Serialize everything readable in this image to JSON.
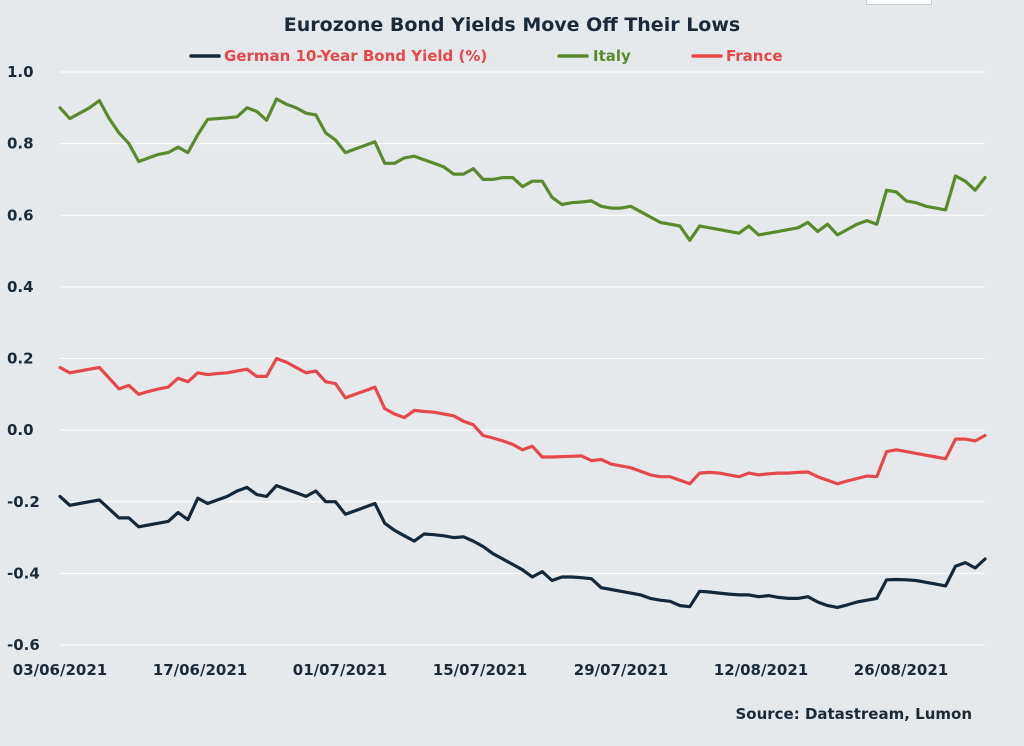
{
  "chart_data": {
    "type": "line",
    "title": "Eurozone Bond Yields Move Off Their Lows",
    "source": "Source: Datastream, Lumon",
    "xlabel": "",
    "ylabel": "",
    "ylim": [
      -0.6,
      1.0
    ],
    "yticks": [
      "1.0",
      "0.8",
      "0.6",
      "0.4",
      "0.2",
      "0.0",
      "-0.2",
      "-0.4",
      "-0.6"
    ],
    "ytick_values": [
      1.0,
      0.8,
      0.6,
      0.4,
      0.2,
      0.0,
      -0.2,
      -0.4,
      -0.6
    ],
    "xticks": [
      "03/06/2021",
      "17/06/2021",
      "01/07/2021",
      "15/07/2021",
      "29/07/2021",
      "12/08/2021",
      "26/08/2021"
    ],
    "grid": true,
    "legend_position": "top",
    "series": [
      {
        "name": "German 10-Year Bond Yield (%)",
        "color": "#14283a",
        "legend_color": "#e5484d",
        "values": [
          -0.185,
          -0.21,
          -0.205,
          -0.2,
          -0.195,
          -0.22,
          -0.245,
          -0.245,
          -0.27,
          -0.265,
          -0.26,
          -0.255,
          -0.23,
          -0.25,
          -0.19,
          -0.205,
          -0.195,
          -0.185,
          -0.17,
          -0.16,
          -0.18,
          -0.185,
          -0.155,
          -0.165,
          -0.175,
          -0.185,
          -0.17,
          -0.2,
          -0.2,
          -0.235,
          -0.225,
          -0.215,
          -0.205,
          -0.26,
          -0.28,
          -0.295,
          -0.31,
          -0.29,
          -0.292,
          -0.295,
          -0.3,
          -0.298,
          -0.31,
          -0.325,
          -0.345,
          -0.36,
          -0.375,
          -0.39,
          -0.41,
          -0.395,
          -0.42,
          -0.41,
          -0.41,
          -0.412,
          -0.415,
          -0.44,
          -0.445,
          -0.45,
          -0.455,
          -0.46,
          -0.47,
          -0.475,
          -0.478,
          -0.49,
          -0.493,
          -0.45,
          -0.452,
          -0.455,
          -0.458,
          -0.46,
          -0.46,
          -0.465,
          -0.462,
          -0.467,
          -0.47,
          -0.47,
          -0.465,
          -0.48,
          -0.49,
          -0.495,
          -0.488,
          -0.48,
          -0.475,
          -0.47,
          -0.418,
          -0.417,
          -0.418,
          -0.42,
          -0.425,
          -0.43,
          -0.435,
          -0.38,
          -0.37,
          -0.385,
          -0.36
        ]
      },
      {
        "name": "Italy",
        "color": "#5b8a2e",
        "legend_color": "#5b8a2e",
        "values": [
          0.9,
          0.87,
          0.885,
          0.9,
          0.92,
          0.87,
          0.83,
          0.8,
          0.75,
          0.76,
          0.77,
          0.775,
          0.79,
          0.775,
          0.825,
          0.868,
          0.87,
          0.872,
          0.875,
          0.9,
          0.89,
          0.865,
          0.925,
          0.91,
          0.9,
          0.885,
          0.88,
          0.83,
          0.81,
          0.775,
          0.785,
          0.795,
          0.805,
          0.745,
          0.745,
          0.76,
          0.765,
          0.755,
          0.745,
          0.735,
          0.715,
          0.715,
          0.73,
          0.7,
          0.7,
          0.705,
          0.705,
          0.68,
          0.695,
          0.695,
          0.65,
          0.63,
          0.635,
          0.637,
          0.64,
          0.625,
          0.62,
          0.62,
          0.625,
          0.61,
          0.595,
          0.58,
          0.575,
          0.57,
          0.53,
          0.57,
          0.565,
          0.56,
          0.555,
          0.55,
          0.57,
          0.545,
          0.55,
          0.555,
          0.56,
          0.565,
          0.58,
          0.555,
          0.575,
          0.545,
          0.56,
          0.575,
          0.585,
          0.575,
          0.67,
          0.665,
          0.64,
          0.635,
          0.625,
          0.62,
          0.615,
          0.71,
          0.695,
          0.67,
          0.705
        ]
      },
      {
        "name": "France",
        "color": "#e5484d",
        "legend_color": "#e5484d",
        "values": [
          0.175,
          0.16,
          0.165,
          0.17,
          0.175,
          0.145,
          0.115,
          0.125,
          0.1,
          0.108,
          0.115,
          0.12,
          0.145,
          0.135,
          0.16,
          0.155,
          0.158,
          0.16,
          0.165,
          0.17,
          0.15,
          0.15,
          0.2,
          0.19,
          0.175,
          0.16,
          0.165,
          0.135,
          0.13,
          0.09,
          0.1,
          0.11,
          0.12,
          0.06,
          0.045,
          0.035,
          0.055,
          0.052,
          0.05,
          0.045,
          0.04,
          0.025,
          0.015,
          -0.015,
          -0.022,
          -0.03,
          -0.04,
          -0.055,
          -0.045,
          -0.075,
          -0.075,
          -0.074,
          -0.073,
          -0.072,
          -0.085,
          -0.082,
          -0.095,
          -0.1,
          -0.105,
          -0.115,
          -0.125,
          -0.13,
          -0.13,
          -0.14,
          -0.15,
          -0.12,
          -0.118,
          -0.12,
          -0.125,
          -0.13,
          -0.12,
          -0.125,
          -0.122,
          -0.12,
          -0.12,
          -0.118,
          -0.117,
          -0.13,
          -0.14,
          -0.15,
          -0.142,
          -0.135,
          -0.128,
          -0.13,
          -0.06,
          -0.055,
          -0.06,
          -0.065,
          -0.07,
          -0.075,
          -0.08,
          -0.025,
          -0.025,
          -0.03,
          -0.015
        ]
      }
    ]
  }
}
